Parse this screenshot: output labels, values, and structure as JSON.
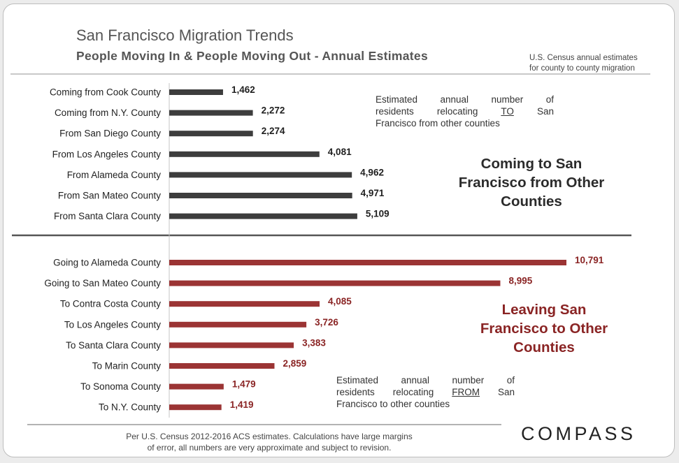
{
  "header": {
    "title": "San Francisco Migration Trends",
    "subtitle": "People Moving In & People Moving Out - Annual Estimates",
    "source_note_line1": "U.S. Census annual estimates",
    "source_note_line2": "for county to county migration"
  },
  "colors": {
    "incoming_bar": "#3d3d3d",
    "outgoing_bar": "#9b3434",
    "incoming_label": "#2b2b2b",
    "outgoing_label": "#8a2424",
    "divider": "#555555"
  },
  "annotations": {
    "incoming_note": {
      "line1": "Estimated annual number of",
      "line2_pre": "residents relocating ",
      "line2_emph": "TO",
      "line2_post": " San",
      "line3": "Francisco from other counties"
    },
    "incoming_label": {
      "line1": "Coming to San",
      "line2": "Francisco from Other",
      "line3": "Counties"
    },
    "outgoing_label": {
      "line1": "Leaving San",
      "line2": "Francisco to Other",
      "line3": "Counties"
    },
    "outgoing_note": {
      "line1": "Estimated annual number of",
      "line2_pre": "residents relocating ",
      "line2_emph": "FROM",
      "line2_post": " San",
      "line3": "Francisco to other counties"
    }
  },
  "footer": {
    "footnote_line1": "Per U.S. Census 2012-2016 ACS estimates. Calculations have large margins",
    "footnote_line2": "of error, all numbers are very approximate and subject to revision.",
    "logo": "COMPASS"
  },
  "chart_data": {
    "type": "bar",
    "orientation": "horizontal",
    "title": "San Francisco Migration Trends",
    "subtitle": "People Moving In & People Moving Out - Annual Estimates",
    "xlim": [
      0,
      11000
    ],
    "grid": false,
    "series": [
      {
        "name": "Coming to San Francisco from Other Counties",
        "categories": [
          "Coming from Cook County",
          "Coming from N.Y. County",
          "From San Diego County",
          "From Los Angeles County",
          "From Alameda County",
          "From San Mateo County",
          "From Santa Clara County"
        ],
        "values": [
          1462,
          2272,
          2274,
          4081,
          4962,
          4971,
          5109
        ],
        "labels": [
          "1,462",
          "2,272",
          "2,274",
          "4,081",
          "4,962",
          "4,971",
          "5,109"
        ]
      },
      {
        "name": "Leaving San Francisco to Other Counties",
        "categories": [
          "Going to Alameda County",
          "Going to San Mateo County",
          "To Contra Costa County",
          "To Los Angeles County",
          "To Santa Clara County",
          "To Marin County",
          "To Sonoma County",
          "To N.Y. County"
        ],
        "values": [
          10791,
          8995,
          4085,
          3726,
          3383,
          2859,
          1479,
          1419
        ],
        "labels": [
          "10,791",
          "8,995",
          "4,085",
          "3,726",
          "3,383",
          "2,859",
          "1,479",
          "1,419"
        ]
      }
    ]
  }
}
